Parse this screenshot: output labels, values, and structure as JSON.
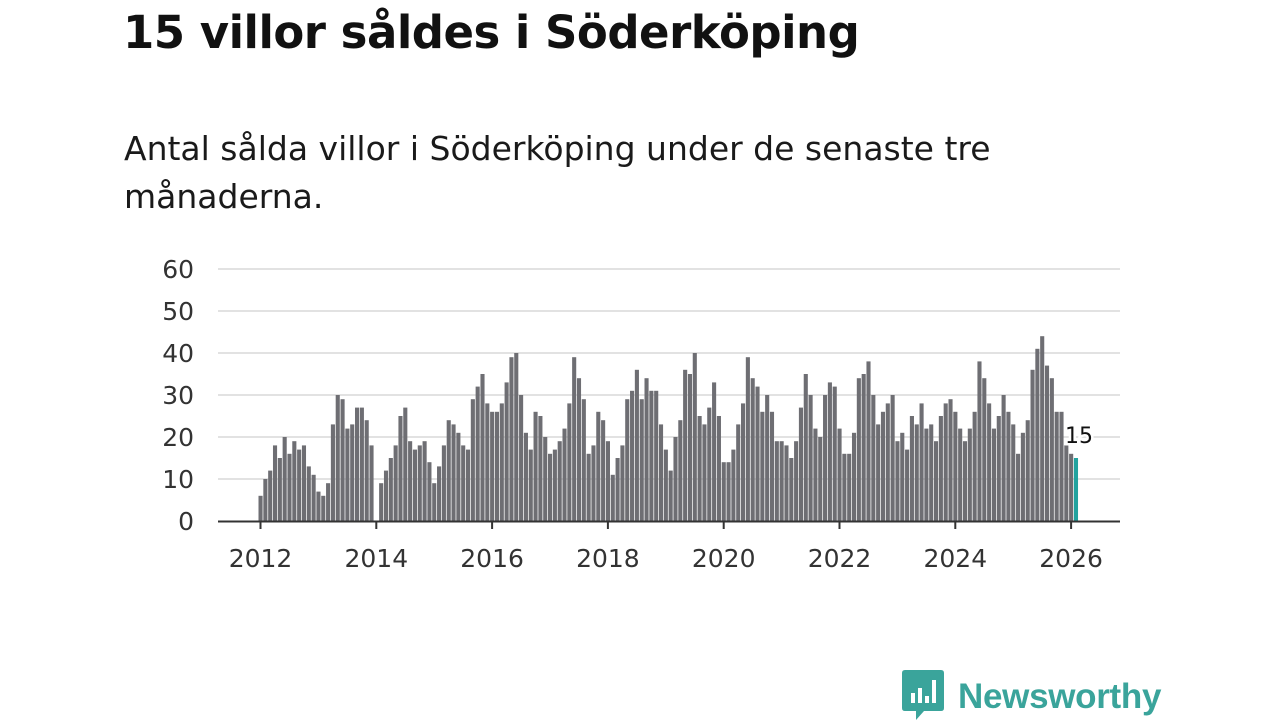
{
  "colors": {
    "bar": "#6e6e73",
    "highlight": "#22a39f",
    "grid": "#d9d9d9",
    "axis": "#333333",
    "brand": "#3aa49b"
  },
  "brand": {
    "name": "Newsworthy",
    "icon": "bar-chart-speech-bubble-icon"
  },
  "chart_data": {
    "type": "bar",
    "title": "15 villor såldes i Söderköping",
    "subtitle": "Antal sålda villor i Söderköping under de senaste tre månaderna.",
    "xlabel": "",
    "ylabel": "",
    "ylim": [
      0,
      60
    ],
    "yticks": [
      0,
      10,
      20,
      30,
      40,
      50,
      60
    ],
    "xticks": [
      "2012",
      "2014",
      "2016",
      "2018",
      "2020",
      "2022",
      "2024",
      "2026"
    ],
    "start": "2012-01",
    "highlight_label": "15",
    "grid": true,
    "values": [
      6,
      10,
      12,
      18,
      15,
      20,
      16,
      19,
      17,
      18,
      13,
      11,
      7,
      6,
      9,
      23,
      30,
      29,
      22,
      23,
      27,
      27,
      24,
      18,
      0,
      9,
      12,
      15,
      18,
      25,
      27,
      19,
      17,
      18,
      19,
      14,
      9,
      13,
      18,
      24,
      23,
      21,
      18,
      17,
      29,
      32,
      35,
      28,
      26,
      26,
      28,
      33,
      39,
      40,
      30,
      21,
      17,
      26,
      25,
      20,
      16,
      17,
      19,
      22,
      28,
      39,
      34,
      29,
      16,
      18,
      26,
      24,
      19,
      11,
      15,
      18,
      29,
      31,
      36,
      29,
      34,
      31,
      31,
      23,
      17,
      12,
      20,
      24,
      36,
      35,
      40,
      25,
      23,
      27,
      33,
      25,
      14,
      14,
      17,
      23,
      28,
      39,
      34,
      32,
      26,
      30,
      26,
      19,
      19,
      18,
      15,
      19,
      27,
      35,
      30,
      22,
      20,
      30,
      33,
      32,
      22,
      16,
      16,
      21,
      34,
      35,
      38,
      30,
      23,
      26,
      28,
      30,
      19,
      21,
      17,
      25,
      23,
      28,
      22,
      23,
      19,
      25,
      28,
      29,
      26,
      22,
      19,
      22,
      26,
      38,
      34,
      28,
      22,
      25,
      30,
      26,
      23,
      16,
      21,
      24,
      36,
      41,
      44,
      37,
      34,
      26,
      26,
      18,
      16,
      15
    ]
  }
}
